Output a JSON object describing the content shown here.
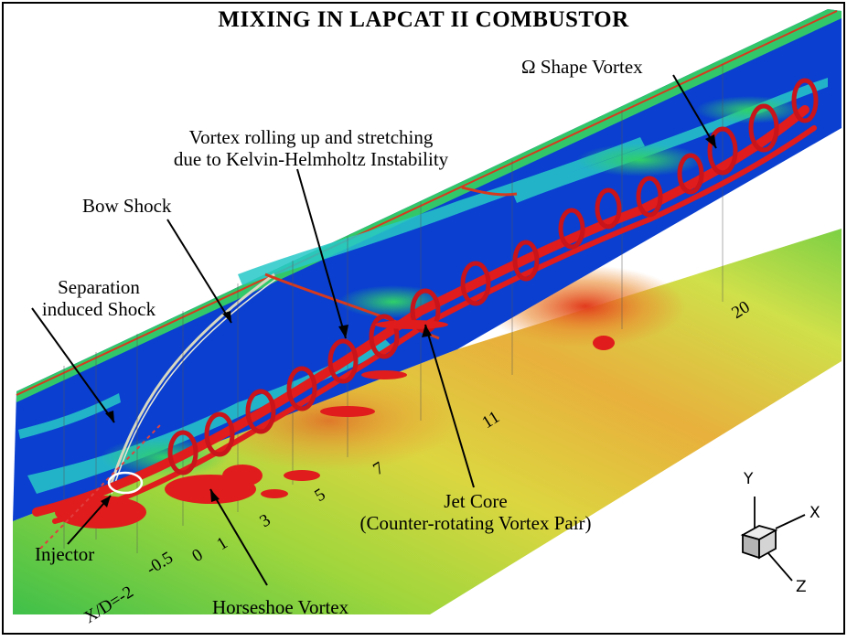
{
  "title": "MIXING IN LAPCAT II COMBUSTOR",
  "annotations": {
    "omega_vortex": "Ω Shape Vortex",
    "kh_line1": "Vortex rolling up and stretching",
    "kh_line2": "due to Kelvin-Helmholtz Instability",
    "bow_shock": "Bow Shock",
    "sep_line1": "Separation",
    "sep_line2": "induced Shock",
    "injector": "Injector",
    "horseshoe": "Horseshoe Vortex",
    "jet_line1": "Jet Core",
    "jet_line2": "(Counter-rotating Vortex Pair)"
  },
  "xd_ticks": {
    "prefix": "X/D=-2",
    "t1": "-0.5",
    "t2": "0",
    "t3": "1",
    "t4": "3",
    "t5": "5",
    "t6": "7",
    "t7": "11",
    "t8": "20"
  },
  "axes_triad": {
    "x": "X",
    "y": "Y",
    "z": "Z"
  },
  "colors": {
    "plane_blue": "#0a3fd0",
    "vortex_red": "#e01c1c",
    "floor_green": "#55c93a",
    "floor_yellow": "#d8d84a",
    "floor_orange": "#e8a23a"
  }
}
